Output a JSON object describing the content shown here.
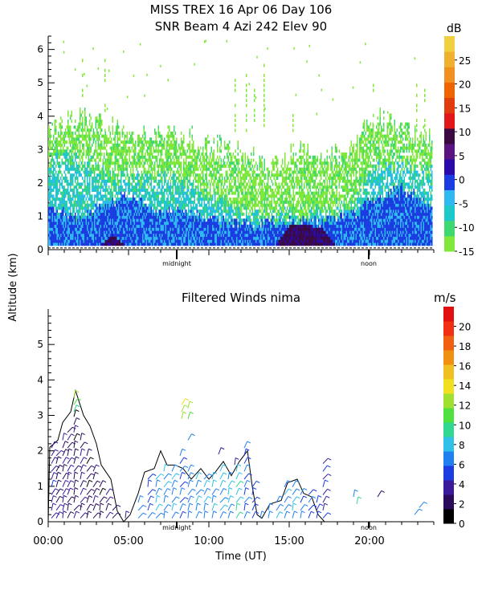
{
  "header": {
    "line1": "MISS TREX   16 Apr 06 Day 106",
    "line2": "SNR Beam 4 Azi 242 Elev 90"
  },
  "shared": {
    "ylabel": "Altitude (km)",
    "xlabel": "Time (UT)",
    "x_ticks": [
      "00:00",
      "05:00",
      "10:00",
      "15:00",
      "20:00"
    ],
    "local_marks": [
      "midnight",
      "noon"
    ]
  },
  "chart_data": [
    {
      "type": "heatmap",
      "title": "SNR Beam 4 Azi 242 Elev 90",
      "x_range_hours": [
        0,
        24
      ],
      "ylim": [
        0,
        6.4
      ],
      "y_ticks": [
        "0",
        "1",
        "2",
        "3",
        "4",
        "5",
        "6"
      ],
      "colorbar": {
        "unit": "dB",
        "ticks": [
          "-15",
          "-10",
          "-5",
          "0",
          "5",
          "10",
          "15",
          "20",
          "25"
        ],
        "range": [
          -15,
          30
        ],
        "colors": [
          "#7fe83a",
          "#3fd870",
          "#1fc8c8",
          "#30b8f0",
          "#1a3ce0",
          "#2a0aa8",
          "#5a1480",
          "#3a0a40",
          "#e01818",
          "#e03c10",
          "#f06400",
          "#f09020",
          "#f0b030",
          "#f0d040"
        ]
      },
      "profiles": [
        {
          "x": 0.0,
          "top_green": 3.6,
          "top_cyan": 2.6,
          "top_blue": 1.2,
          "violet": 0
        },
        {
          "x": 1.0,
          "top_green": 3.8,
          "top_cyan": 2.8,
          "top_blue": 1.0,
          "violet": 0
        },
        {
          "x": 2.0,
          "top_green": 3.9,
          "top_cyan": 2.6,
          "top_blue": 0.9,
          "violet": 0
        },
        {
          "x": 3.0,
          "top_green": 3.8,
          "top_cyan": 2.4,
          "top_blue": 1.2,
          "violet": 0
        },
        {
          "x": 4.0,
          "top_green": 3.6,
          "top_cyan": 2.0,
          "top_blue": 1.4,
          "violet": 0.4
        },
        {
          "x": 5.0,
          "top_green": 3.5,
          "top_cyan": 2.2,
          "top_blue": 1.6,
          "violet": 0
        },
        {
          "x": 6.0,
          "top_green": 3.4,
          "top_cyan": 2.0,
          "top_blue": 1.3,
          "violet": 0
        },
        {
          "x": 7.0,
          "top_green": 3.5,
          "top_cyan": 2.1,
          "top_blue": 1.0,
          "violet": 0
        },
        {
          "x": 8.0,
          "top_green": 3.4,
          "top_cyan": 2.0,
          "top_blue": 1.2,
          "violet": 0
        },
        {
          "x": 9.0,
          "top_green": 3.3,
          "top_cyan": 1.8,
          "top_blue": 1.0,
          "violet": 0
        },
        {
          "x": 10.0,
          "top_green": 3.2,
          "top_cyan": 1.5,
          "top_blue": 0.9,
          "violet": 0
        },
        {
          "x": 11.0,
          "top_green": 3.1,
          "top_cyan": 1.3,
          "top_blue": 0.8,
          "violet": 0
        },
        {
          "x": 12.0,
          "top_green": 3.0,
          "top_cyan": 1.1,
          "top_blue": 0.7,
          "violet": 0
        },
        {
          "x": 13.0,
          "top_green": 2.6,
          "top_cyan": 1.0,
          "top_blue": 0.7,
          "violet": 0
        },
        {
          "x": 14.0,
          "top_green": 2.4,
          "top_cyan": 1.0,
          "top_blue": 0.8,
          "violet": 0
        },
        {
          "x": 15.0,
          "top_green": 2.8,
          "top_cyan": 1.0,
          "top_blue": 0.8,
          "violet": 0.7
        },
        {
          "x": 16.0,
          "top_green": 2.9,
          "top_cyan": 1.0,
          "top_blue": 0.8,
          "violet": 0.7
        },
        {
          "x": 17.0,
          "top_green": 2.7,
          "top_cyan": 1.1,
          "top_blue": 0.8,
          "violet": 0.6
        },
        {
          "x": 18.0,
          "top_green": 2.8,
          "top_cyan": 1.2,
          "top_blue": 0.9,
          "violet": 0
        },
        {
          "x": 19.0,
          "top_green": 3.0,
          "top_cyan": 1.4,
          "top_blue": 1.0,
          "violet": 0
        },
        {
          "x": 20.0,
          "top_green": 3.9,
          "top_cyan": 2.4,
          "top_blue": 1.4,
          "violet": 0
        },
        {
          "x": 21.0,
          "top_green": 3.8,
          "top_cyan": 2.6,
          "top_blue": 1.6,
          "violet": 0
        },
        {
          "x": 22.0,
          "top_green": 3.6,
          "top_cyan": 2.6,
          "top_blue": 1.8,
          "violet": 0
        },
        {
          "x": 23.0,
          "top_green": 3.4,
          "top_cyan": 2.4,
          "top_blue": 1.5,
          "violet": 0
        },
        {
          "x": 24.0,
          "top_green": 3.2,
          "top_cyan": 2.2,
          "top_blue": 1.2,
          "violet": 0
        }
      ],
      "high_echoes_x": [
        2.1,
        3.5,
        11.6,
        12.3,
        12.8,
        13.4,
        15.2,
        20.2,
        22.9,
        23.4
      ]
    },
    {
      "type": "scatter",
      "title": "Filtered Winds nima",
      "x_range_hours": [
        0,
        24
      ],
      "ylim": [
        0,
        6
      ],
      "y_ticks": [
        "0",
        "1",
        "2",
        "3",
        "4",
        "5"
      ],
      "colorbar": {
        "unit": "m/s",
        "ticks": [
          "0",
          "2",
          "4",
          "6",
          "8",
          "10",
          "12",
          "14",
          "16",
          "18",
          "20"
        ],
        "range": [
          0,
          22
        ],
        "colors": [
          "#000000",
          "#2a0a5a",
          "#3a1a9a",
          "#1a3ce0",
          "#2080f0",
          "#30c0e8",
          "#30d890",
          "#50e040",
          "#a0e030",
          "#f0e020",
          "#f0c020",
          "#f09010",
          "#f06010",
          "#f03010",
          "#e01010"
        ]
      },
      "contour": [
        [
          0.0,
          0.0
        ],
        [
          0.1,
          2.1
        ],
        [
          0.6,
          2.3
        ],
        [
          0.9,
          2.8
        ],
        [
          1.4,
          3.1
        ],
        [
          1.7,
          3.7
        ],
        [
          2.2,
          3.0
        ],
        [
          2.6,
          2.7
        ],
        [
          3.0,
          2.2
        ],
        [
          3.3,
          1.6
        ],
        [
          3.9,
          1.2
        ],
        [
          4.3,
          0.3
        ],
        [
          4.7,
          0.0
        ],
        [
          5.1,
          0.2
        ],
        [
          5.6,
          0.8
        ],
        [
          6.0,
          1.4
        ],
        [
          6.6,
          1.5
        ],
        [
          7.0,
          2.0
        ],
        [
          7.4,
          1.6
        ],
        [
          7.9,
          1.6
        ],
        [
          8.4,
          1.5
        ],
        [
          8.9,
          1.2
        ],
        [
          9.5,
          1.5
        ],
        [
          10.0,
          1.2
        ],
        [
          10.4,
          1.4
        ],
        [
          10.9,
          1.7
        ],
        [
          11.4,
          1.3
        ],
        [
          11.9,
          1.7
        ],
        [
          12.4,
          2.0
        ],
        [
          12.7,
          1.0
        ],
        [
          13.0,
          0.2
        ],
        [
          13.3,
          0.1
        ],
        [
          13.8,
          0.5
        ],
        [
          14.5,
          0.6
        ],
        [
          14.9,
          1.1
        ],
        [
          15.5,
          1.2
        ],
        [
          15.9,
          0.8
        ],
        [
          16.4,
          0.7
        ],
        [
          16.8,
          0.2
        ],
        [
          17.2,
          0.0
        ],
        [
          24.0,
          0.0
        ]
      ],
      "wind_columns": [
        {
          "x": 0.2,
          "top": 2.2,
          "speed": 4
        },
        {
          "x": 0.5,
          "top": 2.0,
          "speed": 3
        },
        {
          "x": 0.9,
          "top": 2.4,
          "speed": 3
        },
        {
          "x": 1.2,
          "top": 2.6,
          "speed": 3
        },
        {
          "x": 1.6,
          "top": 3.0,
          "speed": 2
        },
        {
          "x": 2.0,
          "top": 2.4,
          "speed": 3
        },
        {
          "x": 2.4,
          "top": 2.0,
          "speed": 2
        },
        {
          "x": 2.8,
          "top": 1.6,
          "speed": 3
        },
        {
          "x": 3.2,
          "top": 1.0,
          "speed": 2
        },
        {
          "x": 3.6,
          "top": 0.8,
          "speed": 3
        },
        {
          "x": 4.0,
          "top": 0.5,
          "speed": 3
        },
        {
          "x": 4.8,
          "top": 0.3,
          "speed": 5
        },
        {
          "x": 5.6,
          "top": 0.7,
          "speed": 6
        },
        {
          "x": 6.2,
          "top": 1.3,
          "speed": 6
        },
        {
          "x": 6.7,
          "top": 1.4,
          "speed": 7
        },
        {
          "x": 7.2,
          "top": 1.5,
          "speed": 7
        },
        {
          "x": 7.7,
          "top": 1.5,
          "speed": 7
        },
        {
          "x": 8.2,
          "top": 2.0,
          "speed": 6
        },
        {
          "x": 8.7,
          "top": 1.5,
          "speed": 7
        },
        {
          "x": 9.2,
          "top": 1.3,
          "speed": 7
        },
        {
          "x": 9.7,
          "top": 1.4,
          "speed": 7
        },
        {
          "x": 10.2,
          "top": 1.3,
          "speed": 7
        },
        {
          "x": 10.7,
          "top": 1.6,
          "speed": 8
        },
        {
          "x": 11.2,
          "top": 1.3,
          "speed": 7
        },
        {
          "x": 11.7,
          "top": 1.6,
          "speed": 8
        },
        {
          "x": 12.2,
          "top": 2.1,
          "speed": 6
        },
        {
          "x": 12.7,
          "top": 1.0,
          "speed": 5
        },
        {
          "x": 13.2,
          "top": 0.3,
          "speed": 6
        },
        {
          "x": 13.7,
          "top": 0.5,
          "speed": 7
        },
        {
          "x": 14.2,
          "top": 0.6,
          "speed": 7
        },
        {
          "x": 14.7,
          "top": 1.0,
          "speed": 7
        },
        {
          "x": 15.2,
          "top": 1.1,
          "speed": 7
        },
        {
          "x": 15.7,
          "top": 0.9,
          "speed": 6
        },
        {
          "x": 16.2,
          "top": 0.8,
          "speed": 6
        },
        {
          "x": 16.7,
          "top": 0.6,
          "speed": 5
        },
        {
          "x": 17.1,
          "top": 1.7,
          "speed": 4
        }
      ],
      "wind_isolated": [
        {
          "x": 1.6,
          "y": 3.5,
          "speed": 12
        },
        {
          "x": 1.6,
          "y": 3.3,
          "speed": 11
        },
        {
          "x": 1.6,
          "y": 3.1,
          "speed": 9
        },
        {
          "x": 8.3,
          "y": 3.3,
          "speed": 14
        },
        {
          "x": 8.3,
          "y": 3.1,
          "speed": 13
        },
        {
          "x": 8.3,
          "y": 2.9,
          "speed": 12
        },
        {
          "x": 8.7,
          "y": 3.2,
          "speed": 12
        },
        {
          "x": 8.7,
          "y": 2.9,
          "speed": 11
        },
        {
          "x": 8.7,
          "y": 2.3,
          "speed": 7
        },
        {
          "x": 10.6,
          "y": 1.9,
          "speed": 3
        },
        {
          "x": 11.6,
          "y": 1.6,
          "speed": 3
        },
        {
          "x": 19.0,
          "y": 0.7,
          "speed": 6
        },
        {
          "x": 19.2,
          "y": 0.5,
          "speed": 9
        },
        {
          "x": 20.5,
          "y": 0.7,
          "speed": 2
        },
        {
          "x": 22.8,
          "y": 0.2,
          "speed": 6
        },
        {
          "x": 23.1,
          "y": 0.4,
          "speed": 6
        }
      ]
    }
  ]
}
